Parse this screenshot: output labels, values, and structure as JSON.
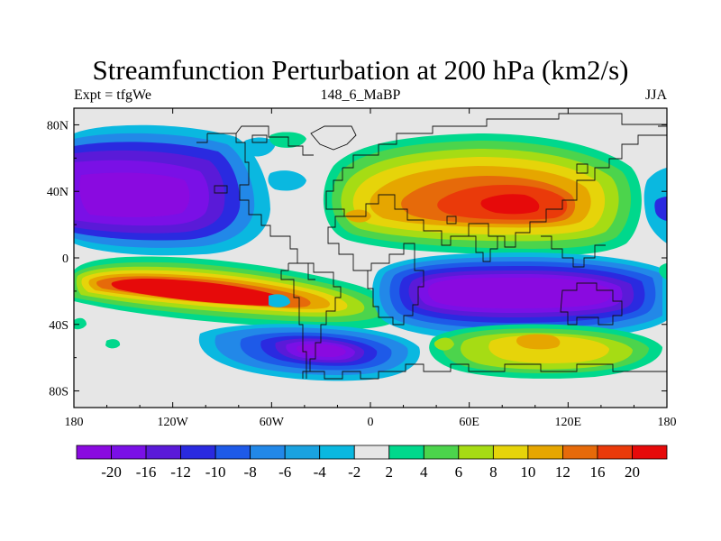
{
  "chart_data": {
    "type": "heatmap",
    "title": "Streamfunction Perturbation at 200 hPa (km2/s)",
    "subtitle_left": "Expt = tfgWe",
    "subtitle_center": "148_6_MaBP",
    "subtitle_right": "JJA",
    "xlim": [
      -180,
      180
    ],
    "ylim": [
      -90,
      90
    ],
    "x_ticks": [
      -180,
      -120,
      -60,
      0,
      60,
      120,
      180
    ],
    "x_tick_labels": [
      "180",
      "120W",
      "60W",
      "0",
      "60E",
      "120E",
      "180"
    ],
    "y_ticks": [
      80,
      40,
      0,
      -40,
      -80
    ],
    "y_tick_labels": [
      "80N",
      "40N",
      "0",
      "40S",
      "80S"
    ],
    "colorbar": {
      "levels": [
        "-20",
        "-16",
        "-12",
        "-10",
        "-8",
        "-6",
        "-4",
        "-2",
        "2",
        "4",
        "6",
        "8",
        "10",
        "12",
        "16",
        "20"
      ],
      "colors": [
        "#8a0ae0",
        "#7a10e6",
        "#5a1ad8",
        "#2a2ae0",
        "#1e5ae8",
        "#2288e8",
        "#1aa2e0",
        "#0ab8e0",
        "#e6e6e6",
        "#00d88c",
        "#4cd44c",
        "#a6dc14",
        "#e6d40a",
        "#e6a600",
        "#e66a0a",
        "#ea3a0a",
        "#e60a0a"
      ]
    },
    "features": [
      {
        "name": "N Pacific low",
        "lon": -115,
        "lat": 32,
        "min_value": -20
      },
      {
        "name": "S Pacific high",
        "lon": -100,
        "lat": -25,
        "max_value": 20
      },
      {
        "name": "Asian high",
        "lon": 80,
        "lat": 30,
        "max_value": 20
      },
      {
        "name": "Indian Ocean low",
        "lon": 80,
        "lat": -25,
        "min_value": -20
      },
      {
        "name": "S Atlantic low",
        "lon": -25,
        "lat": -53,
        "min_value": -20
      },
      {
        "name": "S Indian high",
        "lon": 100,
        "lat": -52,
        "max_value": 10
      }
    ]
  }
}
